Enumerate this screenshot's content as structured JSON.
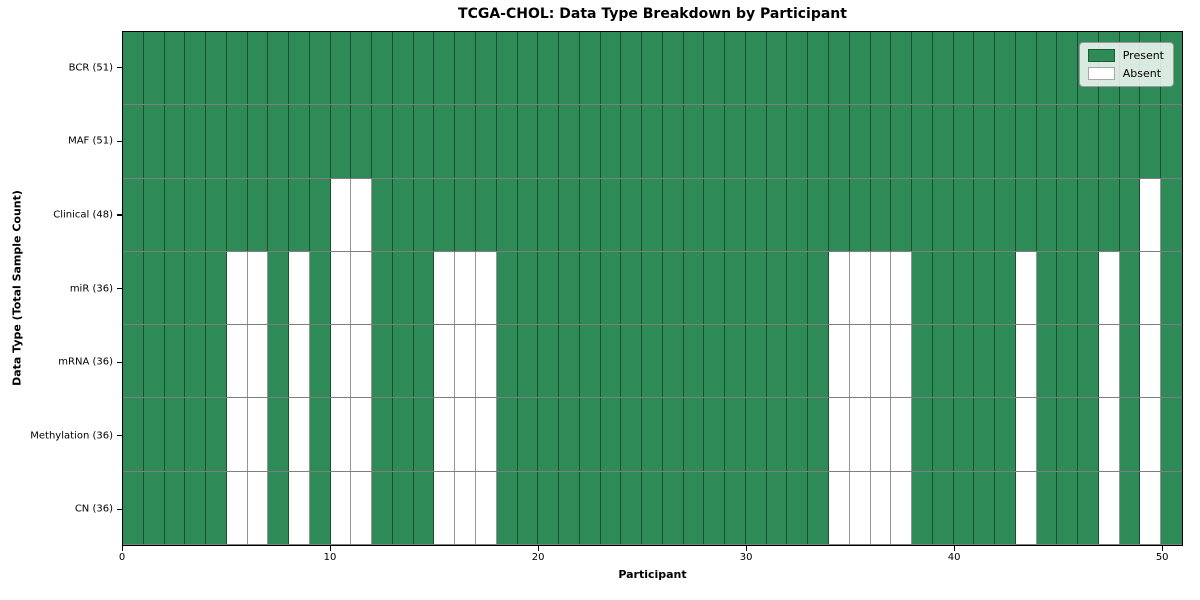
{
  "chart_data": {
    "type": "heatmap",
    "title": "TCGA-CHOL: Data Type Breakdown by Participant",
    "xlabel": "Participant",
    "ylabel": "Data Type (Total Sample Count)",
    "n_participants": 51,
    "x_range": [
      0,
      51
    ],
    "x_ticks": [
      0,
      10,
      20,
      30,
      40,
      50
    ],
    "grid": true,
    "colors": {
      "present": "#2e8b57",
      "absent": "#ffffff",
      "cell_edge": "rgba(0,0,0,0.42)",
      "plot_border": "#000000"
    },
    "legend": {
      "position": "upper right",
      "items": [
        {
          "label": "Present",
          "color": "#2e8b57"
        },
        {
          "label": "Absent",
          "color": "#ffffff"
        }
      ]
    },
    "rows": [
      {
        "label": "BCR (51)",
        "data_type": "BCR",
        "present_count": 51,
        "absent_participants": []
      },
      {
        "label": "MAF (51)",
        "data_type": "MAF",
        "present_count": 51,
        "absent_participants": []
      },
      {
        "label": "Clinical (48)",
        "data_type": "Clinical",
        "present_count": 48,
        "absent_participants": [
          10,
          11,
          49
        ]
      },
      {
        "label": "miR (36)",
        "data_type": "miR",
        "present_count": 36,
        "absent_participants": [
          5,
          6,
          8,
          10,
          11,
          15,
          16,
          17,
          34,
          35,
          36,
          37,
          43,
          47,
          49
        ]
      },
      {
        "label": "mRNA (36)",
        "data_type": "mRNA",
        "present_count": 36,
        "absent_participants": [
          5,
          6,
          8,
          10,
          11,
          15,
          16,
          17,
          34,
          35,
          36,
          37,
          43,
          47,
          49
        ]
      },
      {
        "label": "Methylation (36)",
        "data_type": "Methylation",
        "present_count": 36,
        "absent_participants": [
          5,
          6,
          8,
          10,
          11,
          15,
          16,
          17,
          34,
          35,
          36,
          37,
          43,
          47,
          49
        ]
      },
      {
        "label": "CN (36)",
        "data_type": "CN",
        "present_count": 36,
        "absent_participants": [
          5,
          6,
          8,
          10,
          11,
          15,
          16,
          17,
          34,
          35,
          36,
          37,
          43,
          47,
          49
        ]
      }
    ]
  }
}
